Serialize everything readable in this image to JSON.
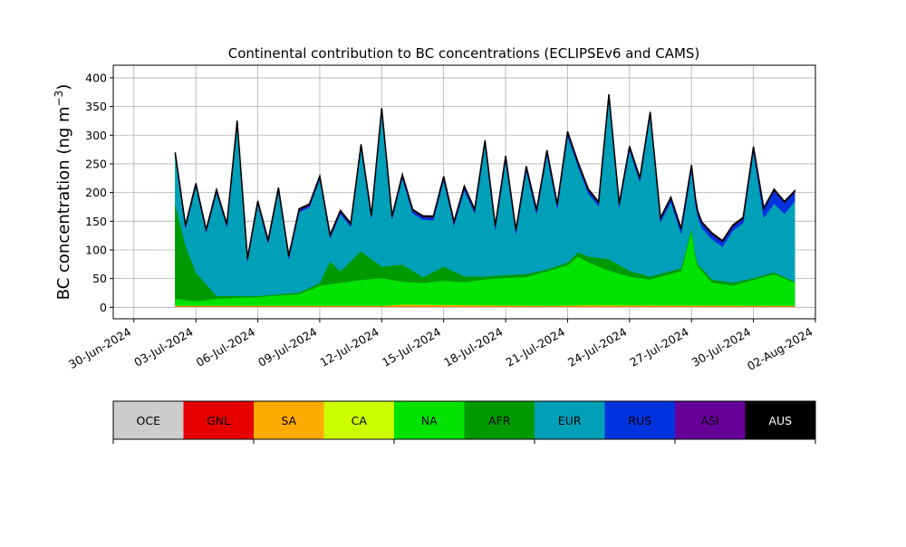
{
  "chart_data": {
    "type": "area",
    "stacked": true,
    "title": "Continental contribution to BC concentrations (ECLIPSEv6 and CAMS)",
    "ylabel_main": "BC concentration (ng m",
    "ylabel_sup": "−3",
    "ylabel_close": ")",
    "xlabel": "",
    "ylim": [
      -20,
      422
    ],
    "y_ticks": [
      0,
      50,
      100,
      150,
      200,
      250,
      300,
      350,
      400
    ],
    "x_start": "2024-06-29",
    "x_end": "2024-08-02",
    "x_ticks": [
      "30-Jun-2024",
      "03-Jul-2024",
      "06-Jul-2024",
      "09-Jul-2024",
      "12-Jul-2024",
      "15-Jul-2024",
      "18-Jul-2024",
      "21-Jul-2024",
      "24-Jul-2024",
      "27-Jul-2024",
      "30-Jul-2024",
      "02-Aug-2024"
    ],
    "grid": true,
    "data_start": "2024-07-02",
    "data_end": "2024-08-01",
    "series": [
      {
        "name": "OCE",
        "color": "#cccccc",
        "x": [
          "2024-07-02",
          "2024-08-01"
        ],
        "values": [
          1,
          1
        ]
      },
      {
        "name": "GNL",
        "color": "#e60000",
        "x": [
          "2024-07-02",
          "2024-08-01"
        ],
        "values": [
          0.5,
          0.5
        ]
      },
      {
        "name": "SA",
        "color": "#ffaa00",
        "x": [
          "2024-07-02",
          "2024-07-12",
          "2024-07-13",
          "2024-07-20",
          "2024-07-22",
          "2024-08-01"
        ],
        "values": [
          1,
          1,
          3,
          1,
          2,
          1
        ]
      },
      {
        "name": "CA",
        "color": "#ccff00",
        "x": [
          "2024-07-02",
          "2024-08-01"
        ],
        "values": [
          0.5,
          0.5
        ]
      },
      {
        "name": "NA",
        "color": "#00e300",
        "x": [
          "2024-07-02",
          "2024-07-02 12:00",
          "2024-07-03",
          "2024-07-04",
          "2024-07-05",
          "2024-07-06",
          "2024-07-07",
          "2024-07-08",
          "2024-07-09",
          "2024-07-10",
          "2024-07-11",
          "2024-07-12",
          "2024-07-13",
          "2024-07-14",
          "2024-07-15",
          "2024-07-16",
          "2024-07-17",
          "2024-07-18",
          "2024-07-19",
          "2024-07-20",
          "2024-07-21",
          "2024-07-21 12:00",
          "2024-07-22",
          "2024-07-23",
          "2024-07-24",
          "2024-07-25",
          "2024-07-26",
          "2024-07-26 12:00",
          "2024-07-27",
          "2024-07-27 06:00",
          "2024-07-28",
          "2024-07-29",
          "2024-07-30",
          "2024-07-31",
          "2024-08-01"
        ],
        "values": [
          12,
          10,
          8,
          12,
          14,
          15,
          18,
          20,
          35,
          40,
          45,
          48,
          40,
          38,
          42,
          40,
          45,
          48,
          50,
          60,
          70,
          85,
          75,
          60,
          50,
          45,
          55,
          60,
          130,
          70,
          40,
          35,
          45,
          55,
          40
        ]
      },
      {
        "name": "AFR",
        "color": "#009900",
        "x": [
          "2024-07-02",
          "2024-07-02 12:00",
          "2024-07-03",
          "2024-07-04",
          "2024-07-05",
          "2024-07-06",
          "2024-07-07",
          "2024-07-08",
          "2024-07-09",
          "2024-07-09 12:00",
          "2024-07-10",
          "2024-07-11",
          "2024-07-12",
          "2024-07-13",
          "2024-07-14",
          "2024-07-15",
          "2024-07-16",
          "2024-07-17",
          "2024-07-18",
          "2024-07-19",
          "2024-07-20",
          "2024-07-21",
          "2024-07-22",
          "2024-07-23",
          "2024-07-24",
          "2024-07-25",
          "2024-07-26",
          "2024-07-27",
          "2024-07-28",
          "2024-07-29",
          "2024-07-30",
          "2024-07-31",
          "2024-08-01"
        ],
        "values": [
          165,
          95,
          50,
          5,
          3,
          2,
          2,
          3,
          5,
          40,
          20,
          50,
          20,
          30,
          10,
          25,
          10,
          5,
          5,
          5,
          3,
          5,
          10,
          20,
          10,
          5,
          5,
          5,
          5,
          5,
          3,
          3,
          2
        ]
      },
      {
        "name": "EUR",
        "color": "#00a0b8",
        "x": [
          "2024-07-02",
          "2024-07-02 12:00",
          "2024-07-03",
          "2024-07-03 12:00",
          "2024-07-04",
          "2024-07-04 12:00",
          "2024-07-05",
          "2024-07-05 12:00",
          "2024-07-06",
          "2024-07-06 12:00",
          "2024-07-07",
          "2024-07-07 12:00",
          "2024-07-08",
          "2024-07-08 12:00",
          "2024-07-09",
          "2024-07-09 12:00",
          "2024-07-10",
          "2024-07-10 12:00",
          "2024-07-11",
          "2024-07-11 12:00",
          "2024-07-12",
          "2024-07-12 12:00",
          "2024-07-13",
          "2024-07-13 12:00",
          "2024-07-14",
          "2024-07-14 12:00",
          "2024-07-15",
          "2024-07-15 12:00",
          "2024-07-16",
          "2024-07-16 12:00",
          "2024-07-17",
          "2024-07-17 12:00",
          "2024-07-18",
          "2024-07-18 12:00",
          "2024-07-19",
          "2024-07-19 12:00",
          "2024-07-20",
          "2024-07-20 12:00",
          "2024-07-21",
          "2024-07-21 12:00",
          "2024-07-22",
          "2024-07-22 12:00",
          "2024-07-23",
          "2024-07-23 12:00",
          "2024-07-24",
          "2024-07-24 12:00",
          "2024-07-25",
          "2024-07-25 12:00",
          "2024-07-26",
          "2024-07-26 12:00",
          "2024-07-27",
          "2024-07-27 12:00",
          "2024-07-28",
          "2024-07-28 12:00",
          "2024-07-29",
          "2024-07-29 12:00",
          "2024-07-30",
          "2024-07-30 12:00",
          "2024-07-31",
          "2024-07-31 12:00",
          "2024-08-01"
        ],
        "values": [
          85,
          30,
          150,
          90,
          180,
          120,
          300,
          60,
          160,
          90,
          180,
          60,
          140,
          140,
          180,
          40,
          100,
          60,
          180,
          70,
          270,
          80,
          150,
          100,
          100,
          90,
          150,
          80,
          150,
          110,
          230,
          80,
          200,
          70,
          180,
          100,
          200,
          100,
          220,
          150,
          110,
          90,
          280,
          100,
          210,
          160,
          280,
          90,
          120,
          60,
          100,
          70,
          70,
          60,
          90,
          100,
          220,
          100,
          120,
          110,
          140
        ]
      },
      {
        "name": "RUS",
        "color": "#0033dd",
        "x": [
          "2024-07-02",
          "2024-07-10",
          "2024-07-20",
          "2024-07-25",
          "2024-07-28",
          "2024-07-30",
          "2024-07-31",
          "2024-08-01"
        ],
        "values": [
          2,
          3,
          5,
          4,
          8,
          6,
          22,
          15
        ]
      },
      {
        "name": "ASI",
        "color": "#660099",
        "x": [
          "2024-07-02",
          "2024-08-01"
        ],
        "values": [
          2,
          2
        ]
      },
      {
        "name": "AUS",
        "color": "#000000",
        "x": [
          "2024-07-02",
          "2024-08-01"
        ],
        "values": [
          1,
          1
        ]
      }
    ]
  },
  "legend": {
    "items": [
      {
        "name": "OCE",
        "color": "#cccccc"
      },
      {
        "name": "GNL",
        "color": "#e60000"
      },
      {
        "name": "SA",
        "color": "#ffaa00"
      },
      {
        "name": "CA",
        "color": "#ccff00"
      },
      {
        "name": "NA",
        "color": "#00e300"
      },
      {
        "name": "AFR",
        "color": "#009900"
      },
      {
        "name": "EUR",
        "color": "#00a0b8"
      },
      {
        "name": "RUS",
        "color": "#0033dd"
      },
      {
        "name": "ASI",
        "color": "#660099"
      },
      {
        "name": "AUS",
        "color": "#000000"
      }
    ]
  }
}
